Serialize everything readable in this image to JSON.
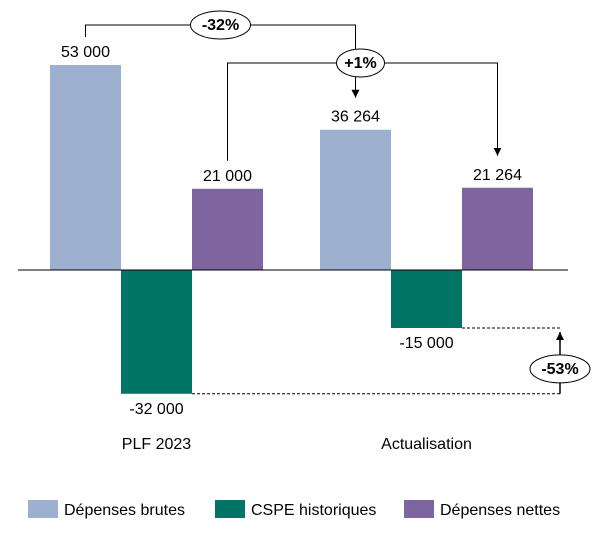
{
  "chart_data": {
    "type": "bar",
    "categories": [
      "PLF 2023",
      "Actualisation"
    ],
    "series": [
      {
        "name": "Dépenses brutes",
        "values": [
          53000,
          36264
        ],
        "color": "#9DB0CF"
      },
      {
        "name": "CSPE historiques",
        "values": [
          -32000,
          -15000
        ],
        "color": "#007566"
      },
      {
        "name": "Dépenses nettes",
        "values": [
          21000,
          21264
        ],
        "color": "#7F659F"
      }
    ],
    "data_labels": [
      [
        "53 000",
        "36 264"
      ],
      [
        "-32 000",
        "-15 000"
      ],
      [
        "21 000",
        "21 264"
      ]
    ],
    "annotations": [
      {
        "text": "-32%",
        "from": "Dépenses brutes / PLF 2023",
        "to": "Dépenses brutes / Actualisation"
      },
      {
        "text": "+1%",
        "from": "Dépenses nettes / PLF 2023",
        "to": "Dépenses nettes / Actualisation"
      },
      {
        "text": "-53%",
        "from": "CSPE historiques / PLF 2023",
        "to": "CSPE historiques / Actualisation"
      }
    ],
    "ylim": [
      -32000,
      53000
    ],
    "legend_position": "bottom",
    "grid": false
  }
}
